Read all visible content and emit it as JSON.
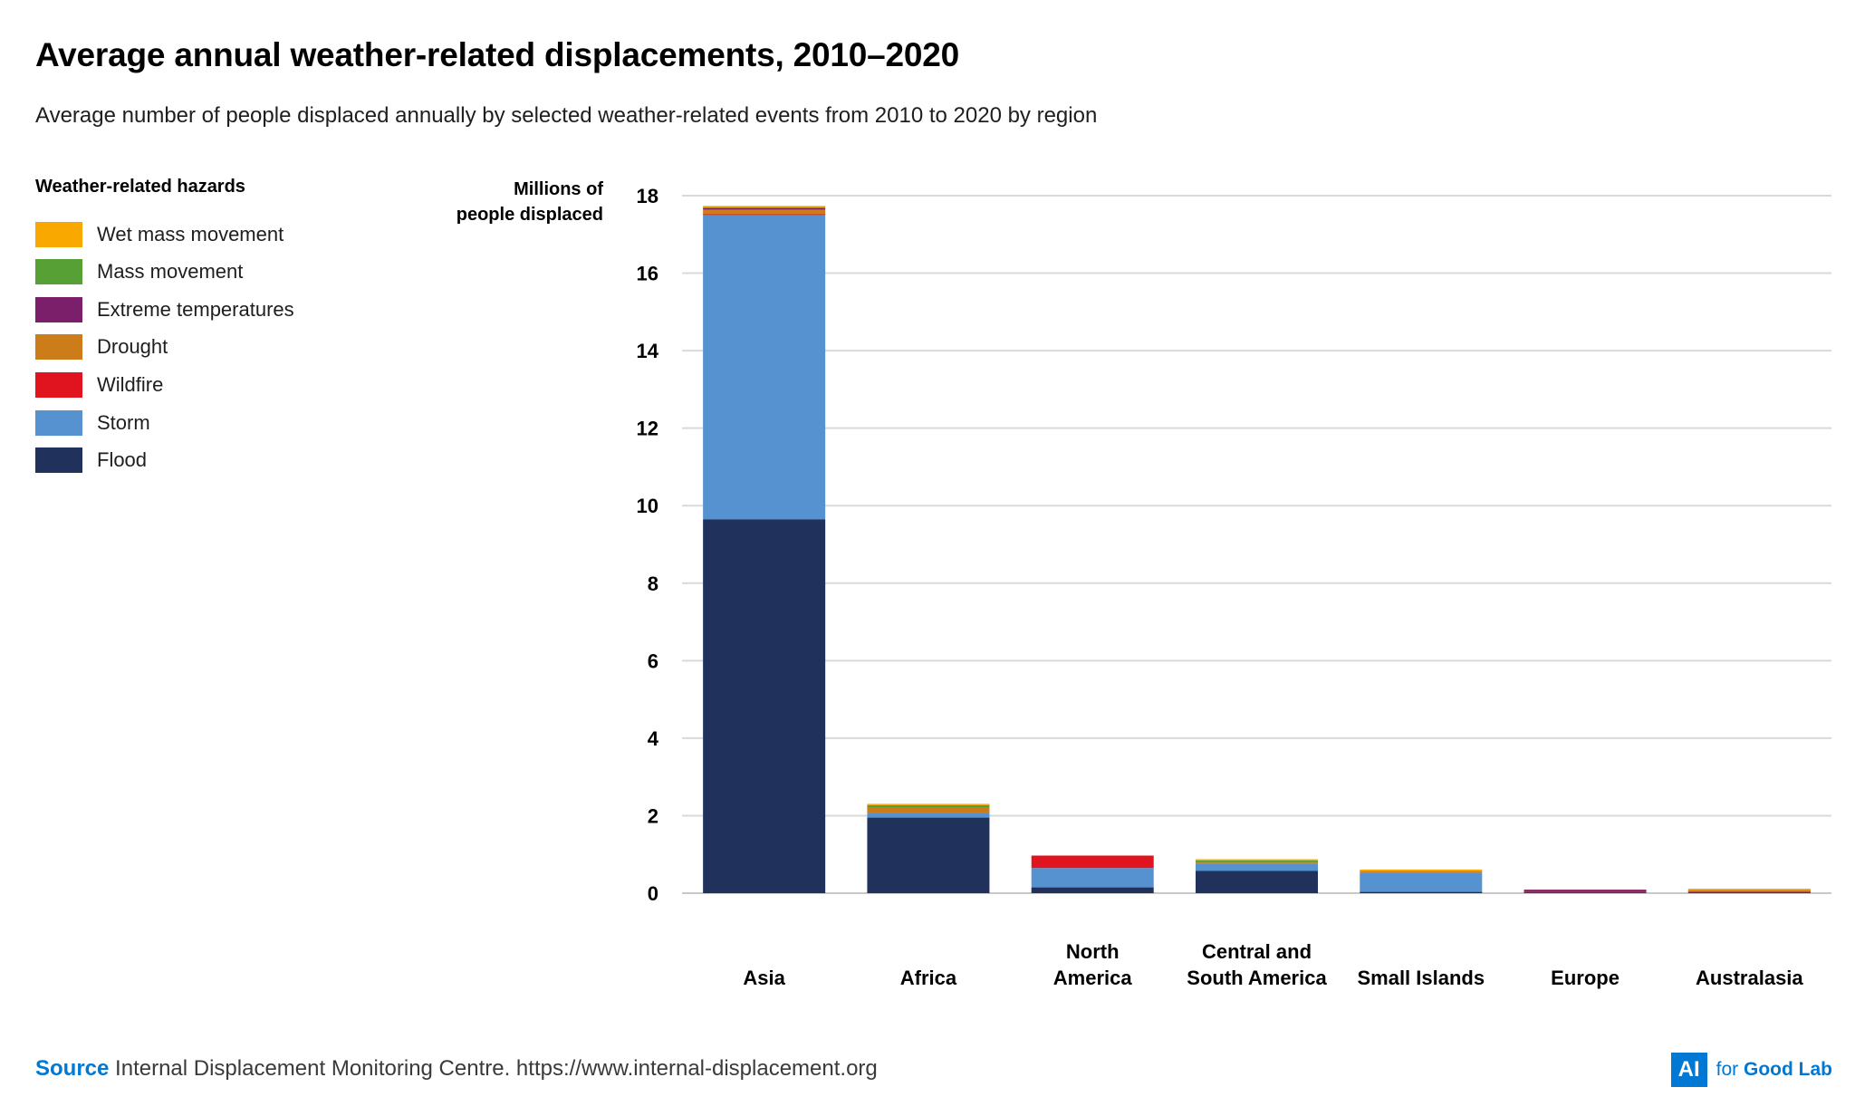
{
  "title": "Average annual weather-related displacements, 2010–2020",
  "subtitle": "Average number of people displaced annually by selected weather-related events from 2010 to 2020 by region",
  "legend": {
    "title": "Weather-related hazards",
    "items": [
      {
        "label": "Wet mass movement",
        "color": "#F9A800"
      },
      {
        "label": "Mass movement",
        "color": "#56A036"
      },
      {
        "label": "Extreme temperatures",
        "color": "#7B1F6B"
      },
      {
        "label": "Drought",
        "color": "#CD7C1A"
      },
      {
        "label": "Wildfire",
        "color": "#E0141E"
      },
      {
        "label": "Storm",
        "color": "#5592CF"
      },
      {
        "label": "Flood",
        "color": "#20325C"
      }
    ]
  },
  "y_axis_label": {
    "line1": "Millions of",
    "line2": "people displaced"
  },
  "source": {
    "key": "Source",
    "text": "Internal Displacement Monitoring Centre. https://www.internal-displacement.org"
  },
  "brand": {
    "box": "AI",
    "pre": "for",
    "name": "Good Lab"
  },
  "chart_data": {
    "type": "bar",
    "stacked": true,
    "title": "Average annual weather-related displacements, 2010–2020",
    "ylabel": "Millions of people displaced",
    "xlabel": "",
    "ylim": [
      0,
      18
    ],
    "yticks": [
      0,
      2,
      4,
      6,
      8,
      10,
      12,
      14,
      16,
      18
    ],
    "grid": true,
    "categories": [
      "Asia",
      "Africa",
      "North America",
      "Central and South America",
      "Small Islands",
      "Europe",
      "Australasia"
    ],
    "category_lines": [
      [
        "Asia"
      ],
      [
        "Africa"
      ],
      [
        "North",
        "America"
      ],
      [
        "Central and",
        "South America"
      ],
      [
        "Small Islands"
      ],
      [
        "Europe"
      ],
      [
        "Australasia"
      ]
    ],
    "series": [
      {
        "name": "Flood",
        "color": "#20325C",
        "values": [
          9.65,
          1.95,
          0.15,
          0.58,
          0.03,
          0.02,
          0.02
        ]
      },
      {
        "name": "Storm",
        "color": "#5592CF",
        "values": [
          7.85,
          0.12,
          0.5,
          0.17,
          0.5,
          0.01,
          0.01
        ]
      },
      {
        "name": "Wildfire",
        "color": "#E0141E",
        "values": [
          0.02,
          0.0,
          0.32,
          0.0,
          0.0,
          0.01,
          0.01
        ]
      },
      {
        "name": "Drought",
        "color": "#CD7C1A",
        "values": [
          0.12,
          0.14,
          0.0,
          0.04,
          0.04,
          0.0,
          0.04
        ]
      },
      {
        "name": "Extreme temperatures",
        "color": "#7B1F6B",
        "values": [
          0.04,
          0.0,
          0.0,
          0.0,
          0.0,
          0.05,
          0.0
        ]
      },
      {
        "name": "Mass movement",
        "color": "#56A036",
        "values": [
          0.02,
          0.06,
          0.0,
          0.05,
          0.0,
          0.0,
          0.0
        ]
      },
      {
        "name": "Wet mass movement",
        "color": "#F9A800",
        "values": [
          0.03,
          0.01,
          0.0,
          0.02,
          0.04,
          0.0,
          0.01
        ]
      }
    ]
  }
}
